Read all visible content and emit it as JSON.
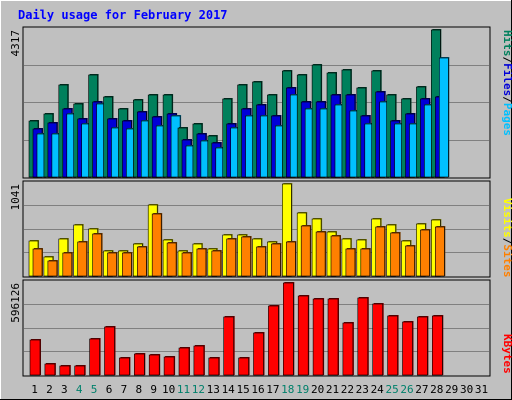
{
  "title": "Daily usage for February 2017",
  "colors": {
    "title": "#0000ff",
    "background": "#c0c0c0",
    "plot": "#c0c0c0",
    "grid": "#808080",
    "weekday": "#000000",
    "weekend": "#00806b",
    "hits": "#00805c",
    "files": "#0000d8",
    "pages": "#00c0ff",
    "visits": "#ffff00",
    "sites": "#ff8000",
    "kbytes": "#ff0000"
  },
  "chart_data": [
    {
      "type": "bar",
      "panel": "requests",
      "ymax_label": "4317",
      "ylim": [
        0,
        4317
      ],
      "categories": [
        "1",
        "2",
        "3",
        "4",
        "5",
        "6",
        "7",
        "8",
        "9",
        "10",
        "11",
        "12",
        "13",
        "14",
        "15",
        "16",
        "17",
        "18",
        "19",
        "20",
        "21",
        "22",
        "23",
        "24",
        "25",
        "26",
        "27",
        "28",
        "29",
        "30",
        "31"
      ],
      "weekend_days": [
        "4",
        "5",
        "11",
        "12",
        "18",
        "19",
        "25",
        "26"
      ],
      "series": [
        {
          "name": "Hits",
          "key": "hits",
          "values": [
            1650,
            1850,
            2700,
            2150,
            3000,
            2350,
            2000,
            2250,
            2400,
            2400,
            1450,
            1550,
            1200,
            2300,
            2700,
            2800,
            2400,
            3100,
            3000,
            3300,
            3050,
            3150,
            2600,
            3100,
            2400,
            2300,
            2650,
            4317,
            0,
            0,
            0
          ]
        },
        {
          "name": "Files",
          "key": "files",
          "values": [
            1400,
            1600,
            2000,
            1700,
            2200,
            1700,
            1650,
            1900,
            1750,
            1850,
            1100,
            1250,
            1000,
            1550,
            2000,
            2100,
            1800,
            2600,
            2200,
            2200,
            2400,
            2400,
            1800,
            2500,
            1650,
            1850,
            2300,
            2350,
            0,
            0,
            0
          ]
        },
        {
          "name": "Pages",
          "key": "pages",
          "values": [
            1250,
            1250,
            1850,
            1550,
            2150,
            1450,
            1400,
            1650,
            1500,
            1800,
            900,
            1050,
            850,
            1450,
            1800,
            1800,
            1500,
            2400,
            2000,
            2000,
            2100,
            1950,
            1550,
            2200,
            1550,
            1550,
            2100,
            3500,
            0,
            0,
            0
          ]
        }
      ]
    },
    {
      "type": "bar",
      "panel": "visits",
      "ymax_label": "1041",
      "ylim": [
        0,
        1041
      ],
      "categories": [
        "1",
        "2",
        "3",
        "4",
        "5",
        "6",
        "7",
        "8",
        "9",
        "10",
        "11",
        "12",
        "13",
        "14",
        "15",
        "16",
        "17",
        "18",
        "19",
        "20",
        "21",
        "22",
        "23",
        "24",
        "25",
        "26",
        "27",
        "28",
        "29",
        "30",
        "31"
      ],
      "series": [
        {
          "name": "Visits",
          "key": "visits",
          "values": [
            400,
            220,
            420,
            580,
            530,
            280,
            280,
            360,
            800,
            410,
            280,
            360,
            300,
            460,
            460,
            420,
            380,
            1041,
            710,
            640,
            500,
            420,
            410,
            650,
            580,
            400,
            590,
            630,
            0,
            0,
            0
          ]
        },
        {
          "name": "Sites",
          "key": "sites",
          "values": [
            300,
            170,
            260,
            380,
            470,
            260,
            260,
            330,
            700,
            370,
            260,
            300,
            280,
            420,
            440,
            330,
            360,
            380,
            570,
            500,
            450,
            310,
            300,
            550,
            490,
            340,
            520,
            560,
            0,
            0,
            0
          ]
        }
      ]
    },
    {
      "type": "bar",
      "panel": "kbytes",
      "ymax_label": "596126",
      "ylim": [
        0,
        596126
      ],
      "categories": [
        "1",
        "2",
        "3",
        "4",
        "5",
        "6",
        "7",
        "8",
        "9",
        "10",
        "11",
        "12",
        "13",
        "14",
        "15",
        "16",
        "17",
        "18",
        "19",
        "20",
        "21",
        "22",
        "23",
        "24",
        "25",
        "26",
        "27",
        "28",
        "29",
        "30",
        "31"
      ],
      "series": [
        {
          "name": "KBytes",
          "key": "kbytes",
          "values": [
            225000,
            73000,
            60000,
            60000,
            235000,
            310000,
            110000,
            135000,
            130000,
            115000,
            175000,
            185000,
            110000,
            375000,
            110000,
            275000,
            445000,
            596126,
            510000,
            490000,
            490000,
            335000,
            500000,
            460000,
            385000,
            345000,
            375000,
            385000,
            0,
            0,
            0
          ]
        }
      ]
    }
  ],
  "side_labels": {
    "panel1": [
      {
        "text": "Hits",
        "color_key": "hits"
      },
      {
        "text": "/",
        "color_key": "weekday"
      },
      {
        "text": "Files",
        "color_key": "files"
      },
      {
        "text": "/",
        "color_key": "weekday"
      },
      {
        "text": "Pages",
        "color_key": "pages"
      }
    ],
    "panel2": [
      {
        "text": "Visits",
        "color_key": "visits"
      },
      {
        "text": "/",
        "color_key": "weekday"
      },
      {
        "text": "Sites",
        "color_key": "sites"
      }
    ],
    "panel3": [
      {
        "text": "KBytes",
        "color_key": "kbytes"
      }
    ]
  }
}
